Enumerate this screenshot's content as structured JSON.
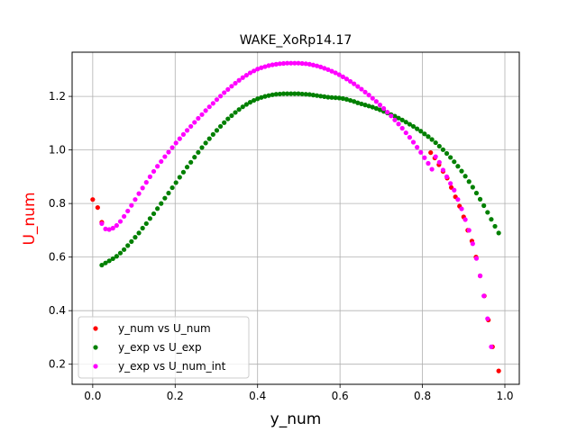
{
  "chart_data": {
    "type": "scatter",
    "title": "WAKE_XoRp14.17",
    "xlabel": "y_num",
    "ylabel": "U_num",
    "ylabel_color": "#ff0000",
    "xlim": [
      -0.05,
      1.035
    ],
    "ylim": [
      0.125,
      1.365
    ],
    "xticks": [
      0.0,
      0.2,
      0.4,
      0.6,
      0.8,
      1.0
    ],
    "xtick_labels": [
      "0.0",
      "0.2",
      "0.4",
      "0.6",
      "0.8",
      "1.0"
    ],
    "yticks": [
      0.2,
      0.4,
      0.6,
      0.8,
      1.0,
      1.2
    ],
    "ytick_labels": [
      "0.2",
      "0.4",
      "0.6",
      "0.8",
      "1.0",
      "1.2"
    ],
    "grid": true,
    "legend_position": "lower-left",
    "series": [
      {
        "name": "y_num vs U_num",
        "color": "#ff0000",
        "points": [
          [
            0.0,
            0.815
          ],
          [
            0.012,
            0.785
          ],
          [
            0.022,
            0.73
          ],
          [
            0.82,
            0.99
          ],
          [
            0.83,
            0.97
          ],
          [
            0.84,
            0.945
          ],
          [
            0.85,
            0.92
          ],
          [
            0.86,
            0.895
          ],
          [
            0.87,
            0.86
          ],
          [
            0.88,
            0.825
          ],
          [
            0.89,
            0.79
          ],
          [
            0.9,
            0.75
          ],
          [
            0.91,
            0.7
          ],
          [
            0.92,
            0.66
          ],
          [
            0.93,
            0.6
          ],
          [
            0.94,
            0.53
          ],
          [
            0.95,
            0.455
          ],
          [
            0.96,
            0.365
          ],
          [
            0.97,
            0.265
          ],
          [
            0.985,
            0.175
          ]
        ]
      },
      {
        "name": "y_exp vs U_exp",
        "color": "#008000",
        "points": [
          [
            0.022,
            0.57
          ],
          [
            0.031,
            0.578
          ],
          [
            0.04,
            0.586
          ],
          [
            0.049,
            0.594
          ],
          [
            0.058,
            0.603
          ],
          [
            0.067,
            0.615
          ],
          [
            0.076,
            0.628
          ],
          [
            0.085,
            0.643
          ],
          [
            0.094,
            0.658
          ],
          [
            0.103,
            0.674
          ],
          [
            0.112,
            0.69
          ],
          [
            0.121,
            0.708
          ],
          [
            0.13,
            0.725
          ],
          [
            0.139,
            0.744
          ],
          [
            0.148,
            0.762
          ],
          [
            0.157,
            0.781
          ],
          [
            0.166,
            0.8
          ],
          [
            0.175,
            0.82
          ],
          [
            0.184,
            0.839
          ],
          [
            0.193,
            0.859
          ],
          [
            0.202,
            0.878
          ],
          [
            0.211,
            0.898
          ],
          [
            0.22,
            0.917
          ],
          [
            0.229,
            0.936
          ],
          [
            0.238,
            0.954
          ],
          [
            0.247,
            0.973
          ],
          [
            0.256,
            0.991
          ],
          [
            0.265,
            1.009
          ],
          [
            0.274,
            1.026
          ],
          [
            0.283,
            1.042
          ],
          [
            0.292,
            1.058
          ],
          [
            0.301,
            1.073
          ],
          [
            0.31,
            1.088
          ],
          [
            0.319,
            1.102
          ],
          [
            0.328,
            1.116
          ],
          [
            0.337,
            1.128
          ],
          [
            0.346,
            1.14
          ],
          [
            0.355,
            1.151
          ],
          [
            0.364,
            1.161
          ],
          [
            0.373,
            1.17
          ],
          [
            0.382,
            1.178
          ],
          [
            0.391,
            1.185
          ],
          [
            0.4,
            1.191
          ],
          [
            0.409,
            1.196
          ],
          [
            0.418,
            1.2
          ],
          [
            0.427,
            1.203
          ],
          [
            0.436,
            1.206
          ],
          [
            0.445,
            1.208
          ],
          [
            0.454,
            1.209
          ],
          [
            0.463,
            1.21
          ],
          [
            0.472,
            1.21
          ],
          [
            0.481,
            1.21
          ],
          [
            0.49,
            1.21
          ],
          [
            0.499,
            1.21
          ],
          [
            0.508,
            1.209
          ],
          [
            0.517,
            1.208
          ],
          [
            0.526,
            1.207
          ],
          [
            0.535,
            1.205
          ],
          [
            0.544,
            1.203
          ],
          [
            0.553,
            1.201
          ],
          [
            0.562,
            1.199
          ],
          [
            0.571,
            1.197
          ],
          [
            0.58,
            1.196
          ],
          [
            0.589,
            1.195
          ],
          [
            0.598,
            1.194
          ],
          [
            0.607,
            1.192
          ],
          [
            0.616,
            1.189
          ],
          [
            0.625,
            1.185
          ],
          [
            0.634,
            1.181
          ],
          [
            0.643,
            1.176
          ],
          [
            0.652,
            1.172
          ],
          [
            0.661,
            1.168
          ],
          [
            0.67,
            1.164
          ],
          [
            0.679,
            1.16
          ],
          [
            0.688,
            1.155
          ],
          [
            0.697,
            1.15
          ],
          [
            0.706,
            1.144
          ],
          [
            0.715,
            1.138
          ],
          [
            0.724,
            1.132
          ],
          [
            0.733,
            1.126
          ],
          [
            0.742,
            1.119
          ],
          [
            0.751,
            1.112
          ],
          [
            0.76,
            1.104
          ],
          [
            0.769,
            1.096
          ],
          [
            0.778,
            1.088
          ],
          [
            0.787,
            1.079
          ],
          [
            0.796,
            1.07
          ],
          [
            0.805,
            1.06
          ],
          [
            0.814,
            1.05
          ],
          [
            0.823,
            1.039
          ],
          [
            0.832,
            1.027
          ],
          [
            0.841,
            1.014
          ],
          [
            0.85,
            1.001
          ],
          [
            0.859,
            0.987
          ],
          [
            0.868,
            0.972
          ],
          [
            0.877,
            0.956
          ],
          [
            0.886,
            0.939
          ],
          [
            0.895,
            0.921
          ],
          [
            0.904,
            0.902
          ],
          [
            0.913,
            0.882
          ],
          [
            0.922,
            0.861
          ],
          [
            0.931,
            0.839
          ],
          [
            0.94,
            0.816
          ],
          [
            0.949,
            0.792
          ],
          [
            0.958,
            0.767
          ],
          [
            0.967,
            0.741
          ],
          [
            0.976,
            0.715
          ],
          [
            0.985,
            0.69
          ]
        ]
      },
      {
        "name": "y_exp vs U_num_int",
        "color": "#ff00ff",
        "points": [
          [
            0.022,
            0.725
          ],
          [
            0.031,
            0.705
          ],
          [
            0.04,
            0.703
          ],
          [
            0.049,
            0.708
          ],
          [
            0.058,
            0.718
          ],
          [
            0.067,
            0.733
          ],
          [
            0.076,
            0.752
          ],
          [
            0.085,
            0.772
          ],
          [
            0.094,
            0.793
          ],
          [
            0.103,
            0.815
          ],
          [
            0.112,
            0.837
          ],
          [
            0.121,
            0.858
          ],
          [
            0.13,
            0.879
          ],
          [
            0.139,
            0.9
          ],
          [
            0.148,
            0.92
          ],
          [
            0.157,
            0.939
          ],
          [
            0.166,
            0.957
          ],
          [
            0.175,
            0.975
          ],
          [
            0.184,
            0.992
          ],
          [
            0.193,
            1.009
          ],
          [
            0.202,
            1.026
          ],
          [
            0.211,
            1.042
          ],
          [
            0.22,
            1.058
          ],
          [
            0.229,
            1.073
          ],
          [
            0.238,
            1.088
          ],
          [
            0.247,
            1.103
          ],
          [
            0.256,
            1.118
          ],
          [
            0.265,
            1.132
          ],
          [
            0.274,
            1.147
          ],
          [
            0.283,
            1.161
          ],
          [
            0.292,
            1.174
          ],
          [
            0.301,
            1.188
          ],
          [
            0.31,
            1.201
          ],
          [
            0.319,
            1.214
          ],
          [
            0.328,
            1.226
          ],
          [
            0.337,
            1.238
          ],
          [
            0.346,
            1.249
          ],
          [
            0.355,
            1.26
          ],
          [
            0.364,
            1.27
          ],
          [
            0.373,
            1.279
          ],
          [
            0.382,
            1.288
          ],
          [
            0.391,
            1.295
          ],
          [
            0.4,
            1.302
          ],
          [
            0.409,
            1.307
          ],
          [
            0.418,
            1.311
          ],
          [
            0.427,
            1.315
          ],
          [
            0.436,
            1.318
          ],
          [
            0.445,
            1.32
          ],
          [
            0.454,
            1.322
          ],
          [
            0.463,
            1.323
          ],
          [
            0.472,
            1.324
          ],
          [
            0.481,
            1.324
          ],
          [
            0.49,
            1.324
          ],
          [
            0.499,
            1.324
          ],
          [
            0.508,
            1.323
          ],
          [
            0.517,
            1.322
          ],
          [
            0.526,
            1.32
          ],
          [
            0.535,
            1.317
          ],
          [
            0.544,
            1.314
          ],
          [
            0.553,
            1.31
          ],
          [
            0.562,
            1.305
          ],
          [
            0.571,
            1.3
          ],
          [
            0.58,
            1.294
          ],
          [
            0.589,
            1.288
          ],
          [
            0.598,
            1.281
          ],
          [
            0.607,
            1.273
          ],
          [
            0.616,
            1.265
          ],
          [
            0.625,
            1.256
          ],
          [
            0.634,
            1.247
          ],
          [
            0.643,
            1.237
          ],
          [
            0.652,
            1.227
          ],
          [
            0.661,
            1.216
          ],
          [
            0.67,
            1.205
          ],
          [
            0.679,
            1.193
          ],
          [
            0.688,
            1.181
          ],
          [
            0.697,
            1.168
          ],
          [
            0.706,
            1.155
          ],
          [
            0.715,
            1.141
          ],
          [
            0.724,
            1.127
          ],
          [
            0.733,
            1.112
          ],
          [
            0.742,
            1.097
          ],
          [
            0.751,
            1.081
          ],
          [
            0.76,
            1.064
          ],
          [
            0.769,
            1.047
          ],
          [
            0.778,
            1.029
          ],
          [
            0.787,
            1.01
          ],
          [
            0.796,
            0.991
          ],
          [
            0.805,
            0.971
          ],
          [
            0.814,
            0.95
          ],
          [
            0.823,
            0.928
          ],
          [
            0.832,
            0.975
          ],
          [
            0.841,
            0.954
          ],
          [
            0.85,
            0.925
          ],
          [
            0.859,
            0.9
          ],
          [
            0.868,
            0.875
          ],
          [
            0.877,
            0.85
          ],
          [
            0.886,
            0.815
          ],
          [
            0.895,
            0.78
          ],
          [
            0.904,
            0.74
          ],
          [
            0.913,
            0.7
          ],
          [
            0.922,
            0.65
          ],
          [
            0.931,
            0.595
          ],
          [
            0.94,
            0.53
          ],
          [
            0.949,
            0.455
          ],
          [
            0.958,
            0.37
          ],
          [
            0.967,
            0.265
          ]
        ]
      }
    ]
  }
}
